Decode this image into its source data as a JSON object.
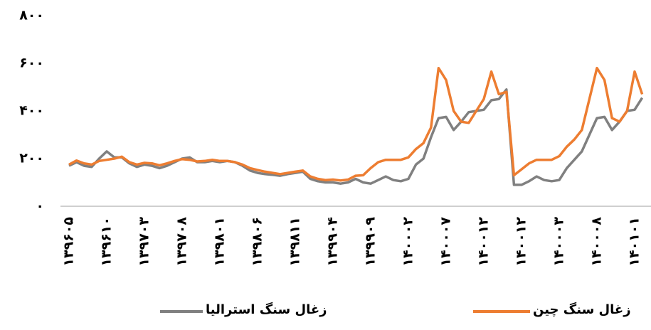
{
  "chart_data": {
    "type": "line",
    "categories": [
      "۱۳۹۶۰۵",
      null,
      null,
      null,
      null,
      "۱۳۹۶۱۰",
      null,
      null,
      null,
      null,
      "۱۳۹۷۰۳",
      null,
      null,
      null,
      null,
      "۱۳۹۷۰۸",
      null,
      null,
      null,
      null,
      "۱۳۹۸۰۱",
      null,
      null,
      null,
      null,
      "۱۳۹۸۰۶",
      null,
      null,
      null,
      null,
      "۱۳۹۸۱۱",
      null,
      null,
      null,
      null,
      "۱۳۹۹۰۴",
      null,
      null,
      null,
      null,
      "۱۳۹۹۰۹",
      null,
      null,
      null,
      null,
      "۱۴۰۰۰۲",
      null,
      null,
      null,
      null,
      "۱۴۰۰۰۷",
      null,
      null,
      null,
      null,
      "۱۴۰۰۱۲",
      null,
      null,
      null,
      null,
      "۱۴۰۰۱۲",
      null,
      null,
      null,
      null,
      "۱۴۰۰۰۳",
      null,
      null,
      null,
      null,
      "۱۴۰۰۰۸",
      null,
      null,
      null,
      null,
      "۱۴۰۱۰۱",
      null
    ],
    "series": [
      {
        "name": "زغال سنگ استرالیا",
        "color": "#808080",
        "values": [
          170,
          185,
          170,
          165,
          200,
          230,
          205,
          205,
          180,
          165,
          175,
          170,
          160,
          170,
          185,
          200,
          205,
          185,
          185,
          190,
          185,
          190,
          185,
          170,
          150,
          140,
          135,
          132,
          128,
          135,
          140,
          145,
          115,
          105,
          100,
          100,
          95,
          100,
          115,
          100,
          95,
          110,
          125,
          110,
          105,
          115,
          175,
          200,
          290,
          370,
          375,
          320,
          355,
          395,
          400,
          405,
          445,
          450,
          490,
          90,
          90,
          105,
          125,
          110,
          105,
          110,
          160,
          195,
          230,
          300,
          370,
          375,
          320,
          355,
          400,
          405,
          455
        ]
      },
      {
        "name": "زغال سنگ چین",
        "color": "#ed7d31",
        "values": [
          175,
          192,
          180,
          175,
          190,
          195,
          200,
          208,
          185,
          175,
          182,
          180,
          172,
          180,
          190,
          198,
          195,
          188,
          190,
          195,
          190,
          190,
          185,
          175,
          160,
          152,
          145,
          140,
          135,
          140,
          145,
          150,
          125,
          115,
          110,
          112,
          108,
          112,
          128,
          130,
          160,
          185,
          195,
          195,
          195,
          205,
          240,
          265,
          330,
          580,
          530,
          400,
          355,
          350,
          400,
          450,
          565,
          470,
          480,
          130,
          155,
          180,
          195,
          195,
          195,
          210,
          250,
          280,
          320,
          450,
          580,
          530,
          370,
          355,
          400,
          565,
          470
        ]
      }
    ],
    "ylim": [
      0,
      800
    ],
    "yticks": [
      {
        "value": 0,
        "label": "۰"
      },
      {
        "value": 200,
        "label": "۲۰۰"
      },
      {
        "value": 400,
        "label": "۴۰۰"
      },
      {
        "value": 600,
        "label": "۶۰۰"
      },
      {
        "value": 800,
        "label": "۸۰۰"
      }
    ]
  }
}
